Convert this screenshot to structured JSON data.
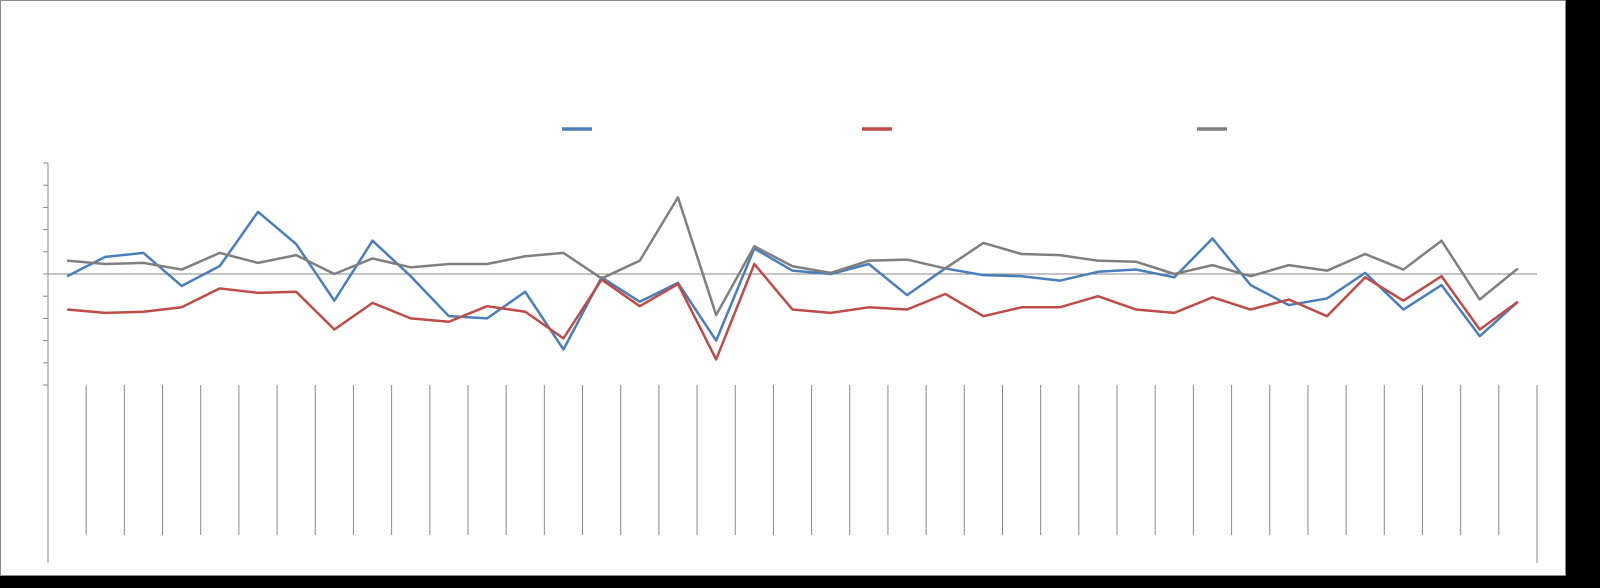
{
  "chart_data": {
    "type": "line",
    "categories": [
      null,
      null,
      null,
      null,
      null,
      null,
      null,
      null,
      null,
      null,
      null,
      null,
      null,
      null,
      null,
      null,
      null,
      null,
      null,
      null,
      null,
      null,
      null,
      null,
      null,
      null,
      null,
      null,
      null,
      null,
      null,
      null,
      null,
      null,
      null,
      null,
      null,
      null,
      null
    ],
    "series": [
      {
        "color": "#4a7ebb",
        "values": [
          -0.1,
          0.77,
          0.95,
          -0.54,
          0.36,
          2.8,
          1.35,
          -1.2,
          1.5,
          -0.1,
          -1.9,
          -2.0,
          -0.8,
          -3.4,
          -0.15,
          -1.25,
          -0.4,
          -3.0,
          1.15,
          0.15,
          0,
          0.45,
          -0.95,
          0.25,
          -0.05,
          -0.1,
          -0.3,
          0.1,
          0.2,
          -0.15,
          1.6,
          -0.5,
          -1.4,
          -1.1,
          0.05,
          -1.6,
          -0.5,
          -2.8,
          -1.25
        ]
      },
      {
        "color": "#be4b48",
        "values": [
          -1.6,
          -1.75,
          -1.7,
          -1.5,
          -0.65,
          -0.85,
          -0.8,
          -2.5,
          -1.3,
          -2.0,
          -2.15,
          -1.45,
          -1.7,
          -2.9,
          -0.25,
          -1.45,
          -0.45,
          -3.85,
          0.45,
          -1.6,
          -1.75,
          -1.5,
          -1.6,
          -0.9,
          -1.9,
          -1.5,
          -1.5,
          -1.0,
          -1.6,
          -1.75,
          -1.05,
          -1.6,
          -1.15,
          -1.9,
          -0.15,
          -1.2,
          -0.1,
          -2.5,
          -1.25
        ]
      },
      {
        "color": "#7f7f7f",
        "values": [
          0.6,
          0.45,
          0.5,
          0.2,
          0.95,
          0.5,
          0.85,
          0,
          0.7,
          0.3,
          0.45,
          0.45,
          0.8,
          0.95,
          -0.2,
          0.6,
          3.45,
          -1.85,
          1.25,
          0.35,
          0.05,
          0.6,
          0.65,
          0.25,
          1.4,
          0.9,
          0.85,
          0.6,
          0.55,
          0,
          0.4,
          -0.1,
          0.4,
          0.15,
          0.9,
          0.2,
          1.5,
          -1.15,
          0.25
        ]
      }
    ],
    "ylim": [
      -5,
      5
    ],
    "yticks": [
      -5,
      -4,
      -3,
      -2,
      -1,
      0,
      1,
      2,
      3,
      4,
      5
    ]
  }
}
